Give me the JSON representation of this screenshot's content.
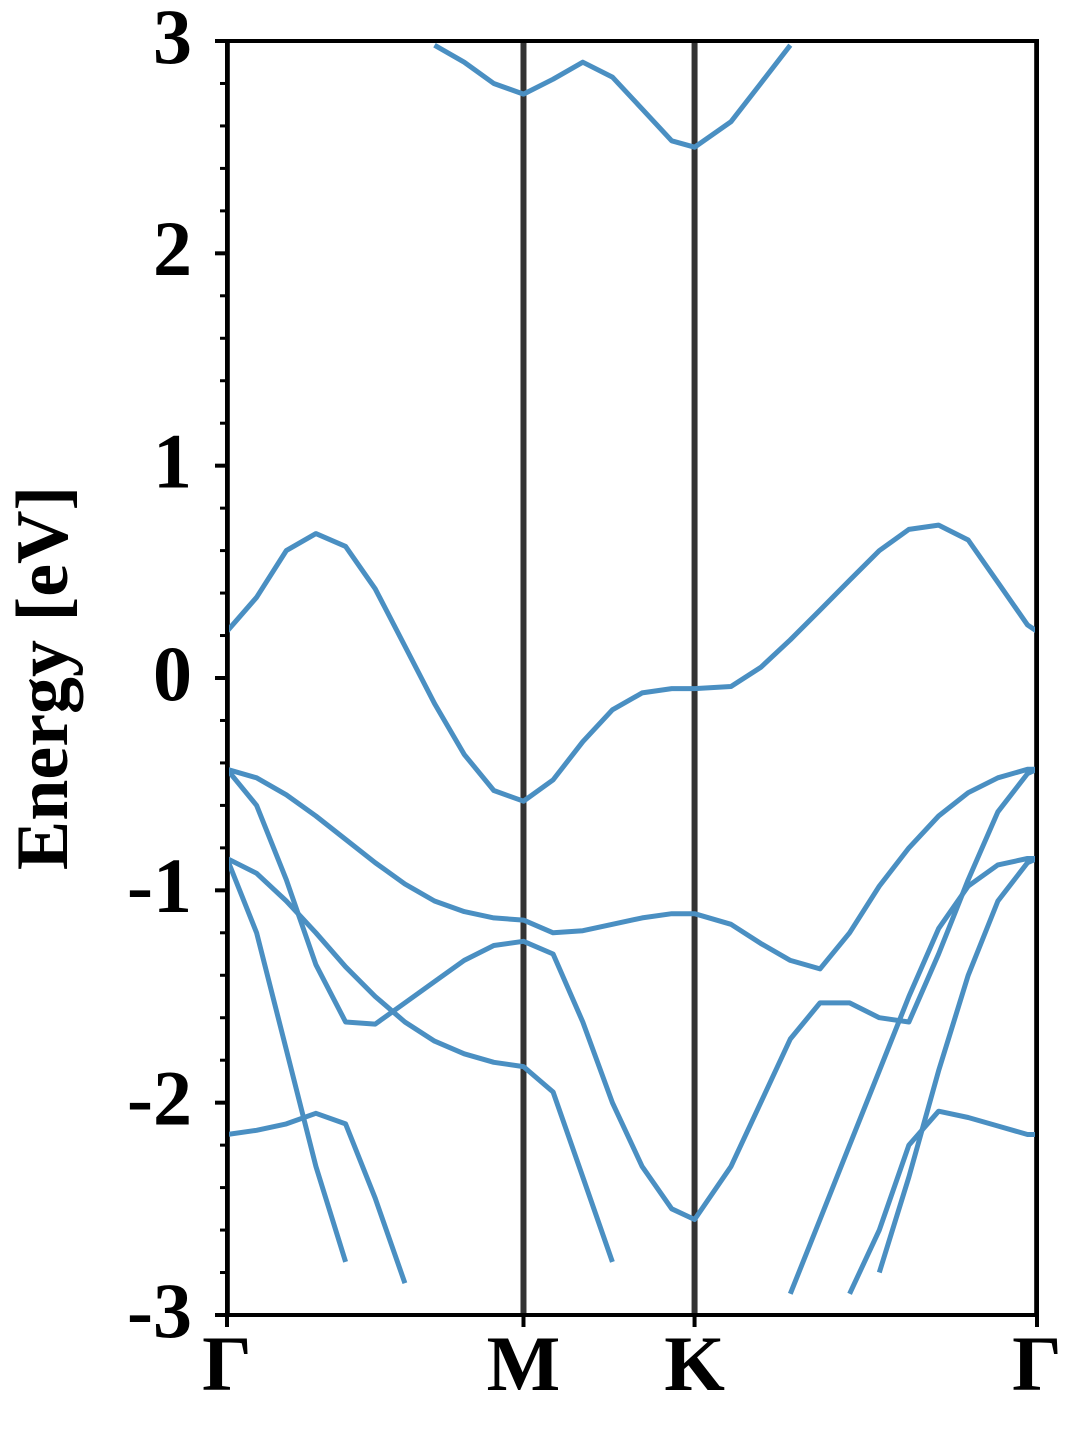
{
  "chart_data": {
    "type": "line",
    "ylabel": "Energy [eV]",
    "color": "#4a8fc2",
    "x": [
      0,
      0.1,
      0.2,
      0.3,
      0.4,
      0.5,
      0.6,
      0.7,
      0.8,
      0.9,
      1.0,
      1.1,
      1.2,
      1.3,
      1.4,
      1.5,
      1.577,
      1.7,
      1.8,
      1.9,
      2.0,
      2.1,
      2.2,
      2.3,
      2.4,
      2.5,
      2.6,
      2.7,
      2.732
    ],
    "series": [
      {
        "values": [
          null,
          null,
          null,
          null,
          null,
          null,
          null,
          2.98,
          2.9,
          2.8,
          2.75,
          2.82,
          2.9,
          2.83,
          2.68,
          2.53,
          2.5,
          2.62,
          2.8,
          2.98,
          null,
          null,
          null,
          null,
          null,
          null,
          null,
          null,
          null
        ]
      },
      {
        "values": [
          0.22,
          0.38,
          0.6,
          0.68,
          0.62,
          0.42,
          0.15,
          -0.12,
          -0.36,
          -0.53,
          -0.58,
          -0.48,
          -0.3,
          -0.15,
          -0.07,
          -0.05,
          -0.05,
          -0.04,
          0.05,
          0.18,
          0.32,
          0.46,
          0.6,
          0.7,
          0.72,
          0.65,
          0.45,
          0.25,
          0.22
        ]
      },
      {
        "values": [
          -0.43,
          -0.47,
          -0.55,
          -0.65,
          -0.76,
          -0.87,
          -0.97,
          -1.05,
          -1.1,
          -1.13,
          -1.14,
          -1.2,
          -1.19,
          -1.16,
          -1.13,
          -1.11,
          -1.11,
          -1.16,
          -1.25,
          -1.33,
          -1.37,
          -1.2,
          -0.98,
          -0.8,
          -0.65,
          -0.54,
          -0.47,
          -0.43,
          -0.43
        ]
      },
      {
        "values": [
          -0.43,
          -0.6,
          -0.95,
          -1.35,
          -1.62,
          -1.63,
          -1.53,
          -1.43,
          -1.33,
          -1.26,
          -1.24,
          -1.3,
          -1.62,
          -2.0,
          -2.3,
          -2.5,
          -2.55,
          -2.3,
          -2.0,
          -1.7,
          -1.53,
          -1.53,
          -1.6,
          -1.62,
          -1.3,
          -0.95,
          -0.63,
          -0.45,
          -0.43
        ]
      },
      {
        "values": [
          -0.85,
          -0.92,
          -1.05,
          -1.2,
          -1.36,
          -1.5,
          -1.62,
          -1.71,
          -1.77,
          -1.81,
          -1.83,
          -1.95,
          -2.35,
          -2.75,
          null,
          null,
          null,
          null,
          null,
          null,
          null,
          null,
          -2.8,
          -2.35,
          -1.85,
          -1.4,
          -1.05,
          -0.87,
          -0.85
        ]
      },
      {
        "values": [
          -0.85,
          -1.2,
          -1.75,
          -2.3,
          -2.75,
          null,
          null,
          null,
          null,
          null,
          null,
          null,
          null,
          null,
          null,
          null,
          null,
          null,
          null,
          -2.9,
          -2.55,
          -2.2,
          -1.85,
          -1.5,
          -1.18,
          -0.98,
          -0.88,
          -0.85,
          -0.85
        ]
      },
      {
        "values": [
          -2.15,
          -2.13,
          -2.1,
          -2.05,
          -2.1,
          -2.45,
          -2.85,
          null,
          null,
          null,
          null,
          null,
          null,
          null,
          null,
          null,
          null,
          null,
          null,
          null,
          null,
          -2.9,
          -2.6,
          -2.2,
          -2.04,
          -2.07,
          -2.11,
          -2.15,
          -2.15
        ]
      }
    ],
    "xlim": [
      0,
      2.732
    ],
    "xticks": [
      {
        "value": 0,
        "label": "Γ"
      },
      {
        "value": 1,
        "label": "M"
      },
      {
        "value": 1.577,
        "label": "K"
      },
      {
        "value": 2.732,
        "label": "Γ"
      }
    ],
    "xgrid": true,
    "ylim": [
      -3,
      3
    ],
    "yticks": [
      -3,
      -2,
      -1,
      0,
      1,
      2,
      3
    ],
    "yminor_step": 0.2
  }
}
